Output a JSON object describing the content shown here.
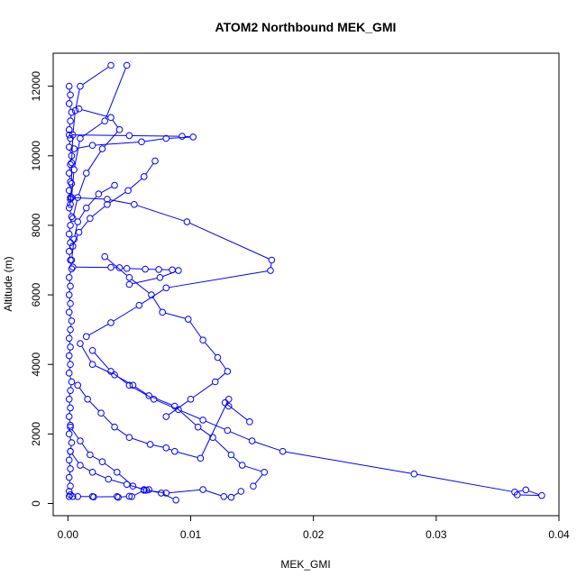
{
  "chart_data": {
    "type": "line",
    "title": "ATOM2 Northbound MEK_GMI",
    "xlabel": "MEK_GMI",
    "ylabel": "Altitude (m)",
    "xlim": [
      -0.0012,
      0.04
    ],
    "ylim": [
      -350,
      12950
    ],
    "x_ticks": [
      0.0,
      0.01,
      0.02,
      0.03,
      0.04
    ],
    "x_tick_labels": [
      "0.00",
      "0.01",
      "0.02",
      "0.03",
      "0.04"
    ],
    "y_ticks": [
      0,
      2000,
      4000,
      6000,
      8000,
      10000,
      12000
    ],
    "y_tick_labels": [
      "0",
      "2000",
      "4000",
      "6000",
      "8000",
      "10000",
      "12000"
    ],
    "grid": false,
    "legend": "none",
    "series_color": "#0000ff",
    "series": [
      {
        "x": [
          0.0001,
          0.0002,
          0.0001,
          0.0003,
          0.0002,
          0.0001,
          0.0002,
          0.0001,
          0.0003,
          0.0002,
          0.0001,
          0.0002,
          0.0001,
          0.0002,
          0.0001,
          0.0003,
          0.0002,
          0.0001,
          0.0002,
          0.0001,
          0.0002,
          0.0003,
          0.0001,
          0.0002,
          0.0001,
          0.0002,
          0.0001,
          0.0003,
          0.0002,
          0.0001,
          0.0002,
          0.0001,
          0.0002,
          0.0001,
          0.0003,
          0.0002,
          0.0001,
          0.0002,
          0.0001,
          0.0002,
          0.0001,
          0.0003,
          0.0002,
          0.0001,
          0.0002,
          0.0001,
          0.0002,
          0.0001,
          0.0002,
          0.0001
        ],
        "y": [
          12000,
          11750,
          11500,
          11250,
          11000,
          10750,
          10500,
          10250,
          10000,
          9750,
          9500,
          9250,
          9000,
          8750,
          8500,
          8250,
          8000,
          7750,
          7500,
          7250,
          7000,
          6750,
          6500,
          6250,
          6000,
          5750,
          5500,
          5250,
          5000,
          4750,
          4500,
          4250,
          4000,
          3750,
          3500,
          3250,
          3000,
          2750,
          2500,
          2250,
          2000,
          1750,
          1500,
          1250,
          1000,
          750,
          500,
          350,
          250,
          200
        ]
      },
      {
        "x": [
          0.0035,
          0.001,
          0.0006,
          0.0004,
          0.0003,
          0.0003,
          0.0002
        ],
        "y": [
          12600,
          12000,
          11300,
          10600,
          9800,
          9200,
          8600
        ]
      },
      {
        "x": [
          0.0048,
          0.003,
          0.001,
          0.0005,
          0.0003
        ],
        "y": [
          12600,
          11000,
          10500,
          9600,
          8800
        ]
      },
      {
        "x": [
          0.0009,
          0.0035,
          0.0042,
          0.0028,
          0.0015,
          0.0008,
          0.0004
        ],
        "y": [
          11350,
          11100,
          10750,
          10200,
          9500,
          8800,
          8200
        ]
      },
      {
        "x": [
          0.0001,
          0.005,
          0.0093,
          0.0102,
          0.008,
          0.006,
          0.002,
          0.0005
        ],
        "y": [
          10600,
          10580,
          10560,
          10540,
          10500,
          10400,
          10300,
          10200
        ]
      },
      {
        "x": [
          0.0071,
          0.0062,
          0.0049,
          0.0032,
          0.0018,
          0.0009,
          0.0004
        ],
        "y": [
          9850,
          9400,
          9000,
          8600,
          8200,
          7800,
          7400
        ]
      },
      {
        "x": [
          0.0038,
          0.0025,
          0.0015,
          0.0008,
          0.0005,
          0.0003
        ],
        "y": [
          9150,
          8900,
          8500,
          8100,
          7600,
          7000
        ]
      },
      {
        "x": [
          0.0002,
          0.0032,
          0.0054,
          0.0097,
          0.0166,
          0.0165,
          0.008,
          0.0058,
          0.0035,
          0.0015
        ],
        "y": [
          8800,
          8750,
          8600,
          8100,
          7000,
          6700,
          6200,
          5700,
          5200,
          4800
        ]
      },
      {
        "x": [
          0.0004,
          0.0035,
          0.0042,
          0.0048,
          0.0063,
          0.0074,
          0.0085,
          0.009,
          0.0075,
          0.005
        ],
        "y": [
          6800,
          6790,
          6780,
          6760,
          6740,
          6730,
          6720,
          6700,
          6500,
          6300
        ]
      },
      {
        "x": [
          0.003,
          0.005,
          0.0068,
          0.0077,
          0.0098,
          0.011,
          0.0122,
          0.013,
          0.012,
          0.01,
          0.008
        ],
        "y": [
          7100,
          6500,
          6000,
          5500,
          5300,
          4700,
          4200,
          3800,
          3500,
          3000,
          2500
        ]
      },
      {
        "x": [
          0.002,
          0.0035,
          0.005,
          0.007,
          0.009,
          0.011,
          0.013,
          0.015,
          0.0175,
          0.0282,
          0.0364,
          0.0373,
          0.0386,
          0.0366
        ],
        "y": [
          4400,
          3800,
          3400,
          3000,
          2700,
          2400,
          2100,
          1800,
          1500,
          850,
          330,
          390,
          230,
          250
        ]
      },
      {
        "x": [
          0.001,
          0.002,
          0.0038,
          0.0053,
          0.0066,
          0.0087,
          0.0106,
          0.0118,
          0.0133,
          0.0142,
          0.016,
          0.0151
        ],
        "y": [
          4600,
          4000,
          3700,
          3400,
          3100,
          2800,
          2200,
          1900,
          1400,
          1100,
          900,
          500
        ]
      },
      {
        "x": [
          0.0008,
          0.0016,
          0.0027,
          0.0038,
          0.005,
          0.0067,
          0.008,
          0.0087,
          0.0108,
          0.0131,
          0.0131,
          0.0128,
          0.0148
        ],
        "y": [
          3400,
          3000,
          2600,
          2200,
          1900,
          1700,
          1600,
          1500,
          1300,
          3000,
          2800,
          2900,
          2350
        ]
      },
      {
        "x": [
          0.0002,
          0.001,
          0.0018,
          0.0028,
          0.004,
          0.0053,
          0.0062,
          0.0076,
          0.0088
        ],
        "y": [
          2200,
          1800,
          1400,
          1200,
          900,
          500,
          400,
          300,
          100
        ]
      },
      {
        "x": [
          0.0002,
          0.001,
          0.002,
          0.0033,
          0.0048,
          0.0064,
          0.008,
          0.011,
          0.0127,
          0.0133,
          0.0141
        ],
        "y": [
          1500,
          1100,
          900,
          700,
          550,
          380,
          300,
          400,
          200,
          180,
          350
        ]
      },
      {
        "x": [
          0.0004,
          0.0008,
          0.002,
          0.0021,
          0.004,
          0.0041,
          0.005,
          0.0052,
          0.0062,
          0.0066
        ],
        "y": [
          200,
          200,
          200,
          190,
          200,
          180,
          210,
          200,
          380,
          400
        ]
      }
    ]
  }
}
